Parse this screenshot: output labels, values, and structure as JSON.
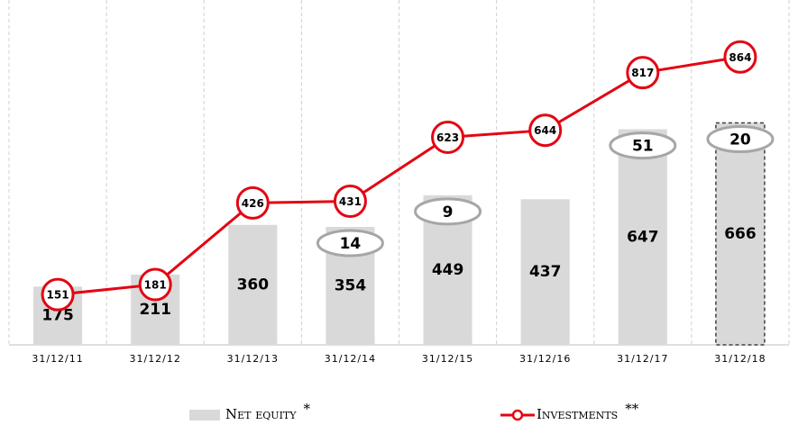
{
  "chart_data": {
    "type": "bar-line",
    "categories": [
      "31/12/11",
      "31/12/12",
      "31/12/13",
      "31/12/14",
      "31/12/15",
      "31/12/16",
      "31/12/17",
      "31/12/18"
    ],
    "series": [
      {
        "name": "Net equity",
        "type": "bar",
        "color": "#d9d9d9",
        "values": [
          175,
          211,
          360,
          354,
          449,
          437,
          647,
          666
        ],
        "legend_note": "*",
        "dashed_index": 7
      },
      {
        "name": "Investments",
        "type": "line",
        "color": "#e30613",
        "values": [
          151,
          181,
          426,
          431,
          623,
          644,
          817,
          864
        ],
        "legend_note": "**"
      }
    ],
    "bubbles": [
      null,
      null,
      null,
      14,
      9,
      null,
      51,
      20
    ],
    "bubble_color": "#a6a6a6",
    "ylim": [
      0,
      1035
    ],
    "grid": true
  }
}
